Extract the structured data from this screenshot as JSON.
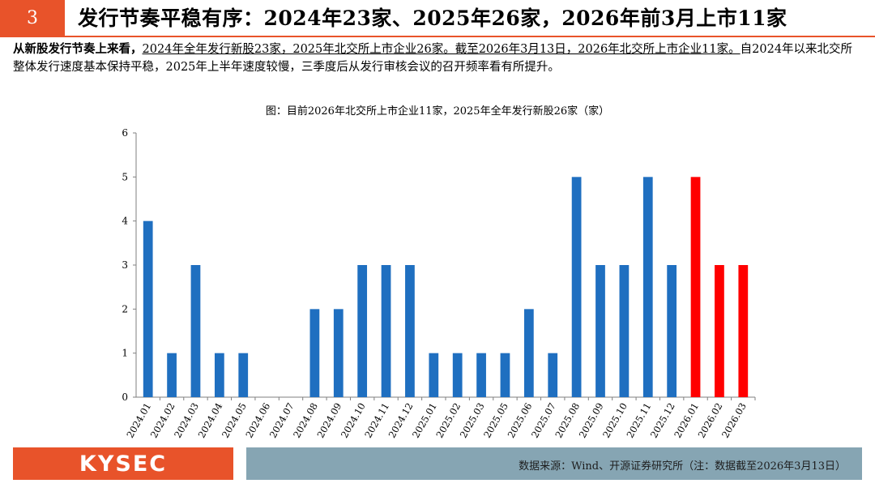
{
  "header": {
    "section_number": "3",
    "title": "发行节奏平稳有序：2024年23家、2025年26家，2026年前3月上市11家"
  },
  "summary": {
    "lead": "从新股发行节奏上来看，",
    "underlined": "2024年全年发行新股23家，2025年北交所上市企业26家。截至2026年3月13日，2026年北交所上市企业11家。",
    "rest": "自2024年以来北交所整体发行速度基本保持平稳，2025年上半年速度较慢，三季度后从发行审核会议的召开频率看有所提升。"
  },
  "chart_data": {
    "type": "bar",
    "title": "图：目前2026年北交所上市企业11家，2025年全年发行新股26家（家）",
    "categories": [
      "2024.01",
      "2024.02",
      "2024.03",
      "2024.04",
      "2024.05",
      "2024.06",
      "2024.07",
      "2024.08",
      "2024.09",
      "2024.10",
      "2024.11",
      "2024.12",
      "2025.01",
      "2025.02",
      "2025.03",
      "2025.05",
      "2025.06",
      "2025.07",
      "2025.08",
      "2025.09",
      "2025.10",
      "2025.11",
      "2025.12",
      "2026.01",
      "2026.02",
      "2026.03"
    ],
    "values": [
      4,
      1,
      3,
      1,
      1,
      0,
      0,
      2,
      2,
      3,
      3,
      3,
      1,
      1,
      1,
      1,
      2,
      1,
      5,
      3,
      3,
      5,
      3,
      5,
      3,
      3
    ],
    "bar_colors": [
      "#1f6fc0",
      "#1f6fc0",
      "#1f6fc0",
      "#1f6fc0",
      "#1f6fc0",
      "#1f6fc0",
      "#1f6fc0",
      "#1f6fc0",
      "#1f6fc0",
      "#1f6fc0",
      "#1f6fc0",
      "#1f6fc0",
      "#1f6fc0",
      "#1f6fc0",
      "#1f6fc0",
      "#1f6fc0",
      "#1f6fc0",
      "#1f6fc0",
      "#1f6fc0",
      "#1f6fc0",
      "#1f6fc0",
      "#1f6fc0",
      "#1f6fc0",
      "#ff0000",
      "#ff0000",
      "#ff0000"
    ],
    "ylim": [
      0,
      6
    ],
    "yticks": [
      0,
      1,
      2,
      3,
      4,
      5,
      6
    ],
    "xlabel": "",
    "ylabel": "",
    "grid": false,
    "legend": "none"
  },
  "footer": {
    "logo": "KYSEC",
    "source": "数据来源：Wind、开源证券研究所（注：数据截至2026年3月13日）"
  },
  "colors": {
    "accent": "#e8532a",
    "bar_blue": "#1f6fc0",
    "bar_red": "#ff0000",
    "footer_bar": "#86a5b3"
  }
}
